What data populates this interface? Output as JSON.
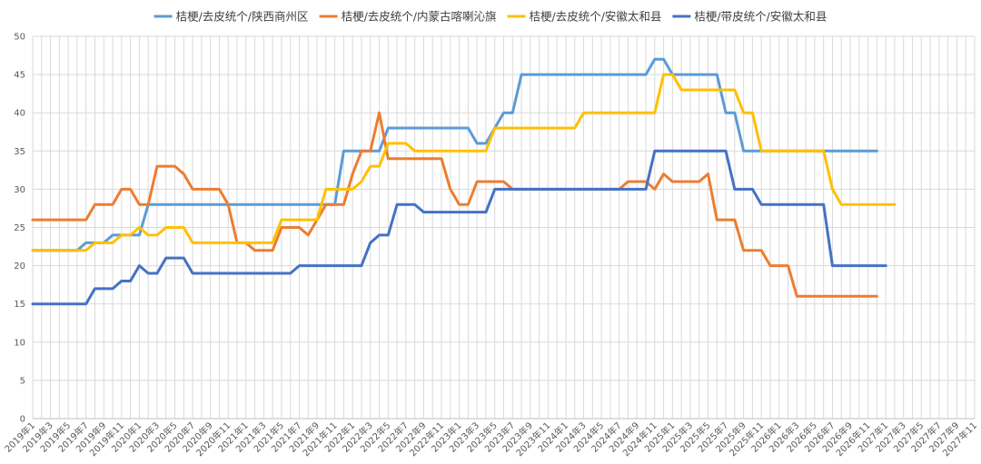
{
  "chart_data": {
    "type": "line",
    "title": "",
    "xlabel": "",
    "ylabel": "",
    "ylim": [
      0,
      50
    ],
    "y_ticks": [
      0,
      5,
      10,
      15,
      20,
      25,
      30,
      35,
      40,
      45,
      50
    ],
    "grid": true,
    "legend_position": "top",
    "x_tick_labels": [
      "2019年1",
      "2019年3",
      "2019年5",
      "2019年7",
      "2019年9",
      "2019年11",
      "2020年1",
      "2020年3",
      "2020年5",
      "2020年7",
      "2020年9",
      "2020年11",
      "2021年1",
      "2021年3",
      "2021年5",
      "2021年7",
      "2021年9",
      "2021年11",
      "2022年1",
      "2022年3",
      "2022年5",
      "2022年7",
      "2022年9",
      "2022年11",
      "2023年1",
      "2023年3",
      "2023年5",
      "2023年7",
      "2023年9",
      "2023年11",
      "2024年1",
      "2024年3",
      "2024年5",
      "2024年7",
      "2024年9",
      "2024年11",
      "2025年1",
      "2025年3",
      "2025年5",
      "2025年7",
      "2025年9",
      "2025年11",
      "2026年1",
      "2026年3",
      "2026年5",
      "2026年7",
      "2026年9",
      "2026年11",
      "2027年1",
      "2027年3",
      "2027年5",
      "2027年7",
      "2027年9",
      "2027年11"
    ],
    "series": [
      {
        "name": "桔梗/去皮统个/陕西商州区",
        "color": "#5b9bd5",
        "values": [
          22,
          22,
          22,
          22,
          22,
          22,
          23,
          23,
          23,
          24,
          24,
          24,
          24,
          28,
          28,
          28,
          28,
          28,
          28,
          28,
          28,
          28,
          28,
          28,
          28,
          28,
          28,
          28,
          28,
          28,
          28,
          28,
          28,
          28,
          28,
          35,
          35,
          35,
          35,
          35,
          38,
          38,
          38,
          38,
          38,
          38,
          38,
          38,
          38,
          38,
          36,
          36,
          38,
          40,
          40,
          45,
          45,
          45,
          45,
          45,
          45,
          45,
          45,
          45,
          45,
          45,
          45,
          45,
          45,
          45,
          47,
          47,
          45,
          45,
          45,
          45,
          45,
          45,
          40,
          40,
          35,
          35,
          35,
          35,
          35,
          35,
          35,
          35,
          35,
          35,
          35,
          35,
          35,
          35,
          35,
          35
        ]
      },
      {
        "name": "桔梗/去皮统个/内蒙古喀喇沁旗",
        "color": "#ed7d31",
        "values": [
          26,
          26,
          26,
          26,
          26,
          26,
          26,
          28,
          28,
          28,
          30,
          30,
          28,
          28,
          33,
          33,
          33,
          32,
          30,
          30,
          30,
          30,
          28,
          23,
          23,
          22,
          22,
          22,
          25,
          25,
          25,
          24,
          26,
          28,
          28,
          28,
          32,
          35,
          35,
          40,
          34,
          34,
          34,
          34,
          34,
          34,
          34,
          30,
          28,
          28,
          31,
          31,
          31,
          31,
          30,
          30,
          30,
          30,
          30,
          30,
          30,
          30,
          30,
          30,
          30,
          30,
          30,
          31,
          31,
          31,
          30,
          32,
          31,
          31,
          31,
          31,
          32,
          26,
          26,
          26,
          22,
          22,
          22,
          20,
          20,
          20,
          16,
          16,
          16,
          16,
          16,
          16,
          16,
          16,
          16,
          16
        ]
      },
      {
        "name": "桔梗/去皮统个/安徽太和县",
        "color": "#ffc000",
        "values": [
          22,
          22,
          22,
          22,
          22,
          22,
          22,
          23,
          23,
          23,
          24,
          24,
          25,
          24,
          24,
          25,
          25,
          25,
          23,
          23,
          23,
          23,
          23,
          23,
          23,
          23,
          23,
          23,
          26,
          26,
          26,
          26,
          26,
          30,
          30,
          30,
          30,
          31,
          33,
          33,
          36,
          36,
          36,
          35,
          35,
          35,
          35,
          35,
          35,
          35,
          35,
          35,
          38,
          38,
          38,
          38,
          38,
          38,
          38,
          38,
          38,
          38,
          40,
          40,
          40,
          40,
          40,
          40,
          40,
          40,
          40,
          45,
          45,
          43,
          43,
          43,
          43,
          43,
          43,
          43,
          40,
          40,
          35,
          35,
          35,
          35,
          35,
          35,
          35,
          35,
          30,
          28,
          28,
          28,
          28,
          28,
          28,
          28
        ]
      },
      {
        "name": "桔梗/带皮统个/安徽太和县",
        "color": "#4472c4",
        "values": [
          15,
          15,
          15,
          15,
          15,
          15,
          15,
          17,
          17,
          17,
          18,
          18,
          20,
          19,
          19,
          21,
          21,
          21,
          19,
          19,
          19,
          19,
          19,
          19,
          19,
          19,
          19,
          19,
          19,
          19,
          20,
          20,
          20,
          20,
          20,
          20,
          20,
          20,
          23,
          24,
          24,
          28,
          28,
          28,
          27,
          27,
          27,
          27,
          27,
          27,
          27,
          27,
          30,
          30,
          30,
          30,
          30,
          30,
          30,
          30,
          30,
          30,
          30,
          30,
          30,
          30,
          30,
          30,
          30,
          30,
          35,
          35,
          35,
          35,
          35,
          35,
          35,
          35,
          35,
          30,
          30,
          30,
          28,
          28,
          28,
          28,
          28,
          28,
          28,
          28,
          20,
          20,
          20,
          20,
          20,
          20,
          20
        ]
      }
    ]
  }
}
